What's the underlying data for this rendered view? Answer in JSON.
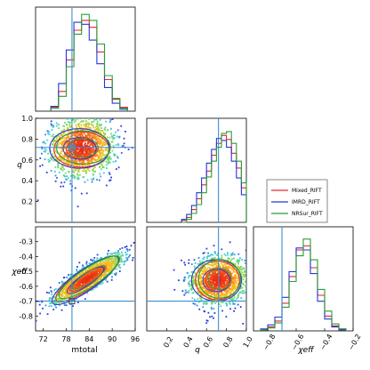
{
  "chart_data": {
    "type": "corner",
    "colors": {
      "Mixed_RIFT": "#e8262e",
      "IMRD_RIFT": "#2636d8",
      "NRSur_RIFT": "#2a9d36",
      "truth": "#3a8fd1"
    },
    "legend": {
      "placement": "upper-right",
      "entries": [
        "Mixed_RIFT",
        "IMRD_RIFT",
        "NRSur_RIFT"
      ]
    },
    "truth": {
      "mtotal": 79.5,
      "q": 0.72,
      "chi_eff": -0.7
    },
    "axes": {
      "mtotal": {
        "label": "mtotal",
        "range": [
          70,
          96
        ],
        "ticks": [
          "72",
          "78",
          "84",
          "90",
          "96"
        ]
      },
      "q": {
        "label": "q",
        "range": [
          0,
          1
        ],
        "ticks": [
          "0.2",
          "0.4",
          "0.6",
          "0.8",
          "1.0"
        ]
      },
      "chi_eff": {
        "label": "χeff",
        "range": [
          -0.9,
          -0.2
        ],
        "ticks": [
          "-0.8",
          "-0.7",
          "-0.6",
          "-0.5",
          "-0.4",
          "-0.3",
          "-0.2"
        ]
      }
    },
    "diag_ticks": {
      "q_lower_left": [
        "0.2",
        "0.4",
        "0.6",
        "0.8",
        "1.0"
      ],
      "chi_bottom": [
        "−0.8",
        "−0.6",
        "−0.4",
        "−0.2"
      ]
    },
    "hist_mtotal": {
      "bins": [
        74,
        76,
        78,
        80,
        82,
        84,
        86,
        88,
        90,
        92,
        94
      ],
      "series": [
        {
          "name": "Mixed_RIFT",
          "values": [
            0.04,
            0.2,
            0.52,
            0.82,
            0.92,
            0.85,
            0.6,
            0.32,
            0.12,
            0.04
          ]
        },
        {
          "name": "IMRD_RIFT",
          "values": [
            0.05,
            0.28,
            0.62,
            0.9,
            0.88,
            0.72,
            0.48,
            0.24,
            0.08,
            0.02
          ]
        },
        {
          "name": "NRSur_RIFT",
          "values": [
            0.03,
            0.15,
            0.45,
            0.78,
            0.98,
            0.92,
            0.68,
            0.36,
            0.13,
            0.03
          ]
        }
      ]
    },
    "hist_q": {
      "bins": [
        0.35,
        0.4,
        0.45,
        0.5,
        0.55,
        0.6,
        0.65,
        0.7,
        0.75,
        0.8,
        0.85,
        0.9,
        0.95,
        1.0
      ],
      "series": [
        {
          "name": "Mixed_RIFT",
          "values": [
            0.02,
            0.05,
            0.13,
            0.24,
            0.38,
            0.52,
            0.68,
            0.8,
            0.88,
            0.84,
            0.7,
            0.55,
            0.35
          ]
        },
        {
          "name": "IMRD_RIFT",
          "values": [
            0.03,
            0.08,
            0.17,
            0.3,
            0.45,
            0.6,
            0.74,
            0.85,
            0.83,
            0.76,
            0.62,
            0.45,
            0.28
          ]
        },
        {
          "name": "NRSur_RIFT",
          "values": [
            0.0,
            0.03,
            0.09,
            0.18,
            0.3,
            0.46,
            0.62,
            0.76,
            0.9,
            0.92,
            0.8,
            0.62,
            0.4
          ]
        }
      ]
    },
    "hist_chi": {
      "bins": [
        -0.85,
        -0.8,
        -0.75,
        -0.7,
        -0.65,
        -0.6,
        -0.55,
        -0.5,
        -0.45,
        -0.4,
        -0.35,
        -0.3,
        -0.25
      ],
      "series": [
        {
          "name": "Mixed_RIFT",
          "values": [
            0.01,
            0.04,
            0.1,
            0.28,
            0.55,
            0.82,
            0.86,
            0.64,
            0.36,
            0.15,
            0.05,
            0.02
          ]
        },
        {
          "name": "IMRD_RIFT",
          "values": [
            0.02,
            0.06,
            0.14,
            0.34,
            0.6,
            0.84,
            0.82,
            0.58,
            0.3,
            0.12,
            0.04,
            0.01
          ]
        },
        {
          "name": "NRSur_RIFT",
          "values": [
            0.01,
            0.03,
            0.08,
            0.24,
            0.5,
            0.76,
            0.93,
            0.72,
            0.42,
            0.2,
            0.07,
            0.02
          ]
        }
      ]
    },
    "panels_2d": [
      {
        "x": "mtotal",
        "y": "q",
        "center": [
          82,
          0.72
        ],
        "sigma": [
          4.2,
          0.14
        ],
        "rho": 0.05,
        "contours": [
          {
            "name": "Mixed_RIFT",
            "center": [
              82,
              0.7
            ],
            "radii": [
              7.2,
              0.17
            ]
          },
          {
            "name": "IMRD_RIFT",
            "center": [
              81.5,
              0.71
            ],
            "radii": [
              7.8,
              0.19
            ]
          },
          {
            "name": "NRSur_RIFT",
            "center": [
              82.5,
              0.72
            ],
            "radii": [
              7.0,
              0.16
            ]
          }
        ]
      },
      {
        "x": "mtotal",
        "y": "chi_eff",
        "center": [
          83.5,
          -0.55
        ],
        "sigma": [
          4.5,
          0.08
        ],
        "rho": 0.85,
        "contours": [
          {
            "name": "Mixed_RIFT",
            "center": [
              83.5,
              -0.55
            ],
            "radii": [
              8.5,
              0.15
            ]
          },
          {
            "name": "IMRD_RIFT",
            "center": [
              83,
              -0.56
            ],
            "radii": [
              9.0,
              0.16
            ]
          },
          {
            "name": "NRSur_RIFT",
            "center": [
              84,
              -0.54
            ],
            "radii": [
              8.2,
              0.14
            ]
          }
        ]
      },
      {
        "x": "q",
        "y": "chi_eff",
        "center": [
          0.72,
          -0.56
        ],
        "sigma": [
          0.14,
          0.08
        ],
        "rho": 0.1,
        "contours": [
          {
            "name": "Mixed_RIFT",
            "center": [
              0.71,
              -0.56
            ],
            "radii": [
              0.22,
              0.13
            ]
          },
          {
            "name": "IMRD_RIFT",
            "center": [
              0.7,
              -0.56
            ],
            "radii": [
              0.25,
              0.14
            ]
          },
          {
            "name": "NRSur_RIFT",
            "center": [
              0.73,
              -0.55
            ],
            "radii": [
              0.21,
              0.13
            ]
          }
        ]
      }
    ]
  }
}
